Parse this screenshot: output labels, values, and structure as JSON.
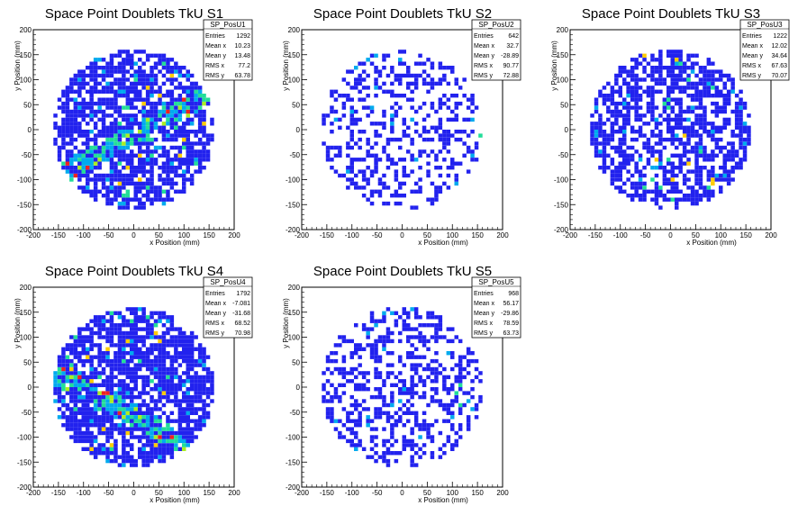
{
  "chart_data": [
    {
      "type": "heatmap",
      "title": "Space Point Doublets TkU S1",
      "xlabel": "x Position (mm)",
      "ylabel": "y Position (mm)",
      "xlim": [
        -200,
        200
      ],
      "ylim": [
        -200,
        200
      ],
      "xticks": [
        "-200",
        "-150",
        "-100",
        "-50",
        "0",
        "50",
        "100",
        "150",
        "200"
      ],
      "yticks": [
        "-200",
        "-150",
        "-100",
        "-50",
        "0",
        "50",
        "100",
        "150",
        "200"
      ],
      "stats": {
        "name": "SP_PosU1",
        "rows": [
          {
            "label": "Entries",
            "value": "1292"
          },
          {
            "label": "Mean x",
            "value": "10.23"
          },
          {
            "label": "Mean y",
            "value": "13.48"
          },
          {
            "label": "RMS x",
            "value": "77.2"
          },
          {
            "label": "RMS y",
            "value": "63.78"
          }
        ]
      },
      "pattern": {
        "band_dir": 1,
        "band_offset": -10,
        "band_width": 22,
        "fill": 0.7,
        "band_fill": 0.95,
        "hot_x": [
          -40,
          150
        ],
        "seed": 11
      }
    },
    {
      "type": "heatmap",
      "title": "Space Point Doublets TkU S2",
      "xlabel": "x Position (mm)",
      "ylabel": "y Position (mm)",
      "xlim": [
        -200,
        200
      ],
      "ylim": [
        -200,
        200
      ],
      "xticks": [
        "-200",
        "-150",
        "-100",
        "-50",
        "0",
        "50",
        "100",
        "150",
        "200"
      ],
      "yticks": [
        "-200",
        "-150",
        "-100",
        "-50",
        "0",
        "50",
        "100",
        "150",
        "200"
      ],
      "stats": {
        "name": "SP_PosU2",
        "rows": [
          {
            "label": "Entries",
            "value": "642"
          },
          {
            "label": "Mean x",
            "value": "32.7"
          },
          {
            "label": "Mean y",
            "value": "-28.89"
          },
          {
            "label": "RMS x",
            "value": "90.77"
          },
          {
            "label": "RMS y",
            "value": "72.88"
          }
        ]
      },
      "pattern": {
        "band_dir": 0,
        "band_offset": 0,
        "band_width": 0,
        "fill": 0.33,
        "band_fill": 0.0,
        "hot_x": [
          130,
          160
        ],
        "seed": 23
      }
    },
    {
      "type": "heatmap",
      "title": "Space Point Doublets TkU S3",
      "xlabel": "x Position (mm)",
      "ylabel": "y Position (mm)",
      "xlim": [
        -200,
        200
      ],
      "ylim": [
        -200,
        200
      ],
      "xticks": [
        "-200",
        "-150",
        "-100",
        "-50",
        "0",
        "50",
        "100",
        "150",
        "200"
      ],
      "yticks": [
        "-200",
        "-150",
        "-100",
        "-50",
        "0",
        "50",
        "100",
        "150",
        "200"
      ],
      "stats": {
        "name": "SP_PosU3",
        "rows": [
          {
            "label": "Entries",
            "value": "1222"
          },
          {
            "label": "Mean x",
            "value": "12.02"
          },
          {
            "label": "Mean y",
            "value": "34.64"
          },
          {
            "label": "RMS x",
            "value": "67.63"
          },
          {
            "label": "RMS y",
            "value": "70.07"
          }
        ]
      },
      "pattern": {
        "band_dir": 0,
        "band_offset": 0,
        "band_width": 0,
        "fill": 0.62,
        "band_fill": 0.0,
        "hot_x": [
          -60,
          90
        ],
        "seed": 37
      }
    },
    {
      "type": "heatmap",
      "title": "Space Point Doublets TkU S4",
      "xlabel": "x Position (mm)",
      "ylabel": "y Position (mm)",
      "xlim": [
        -200,
        200
      ],
      "ylim": [
        -200,
        200
      ],
      "xticks": [
        "-200",
        "-150",
        "-100",
        "-50",
        "0",
        "50",
        "100",
        "150",
        "200"
      ],
      "yticks": [
        "-200",
        "-150",
        "-100",
        "-50",
        "0",
        "50",
        "100",
        "150",
        "200"
      ],
      "stats": {
        "name": "SP_PosU4",
        "rows": [
          {
            "label": "Entries",
            "value": "1792"
          },
          {
            "label": "Mean x",
            "value": "-7.081"
          },
          {
            "label": "Mean y",
            "value": "-31.68"
          },
          {
            "label": "RMS x",
            "value": "68.52"
          },
          {
            "label": "RMS y",
            "value": "70.98"
          }
        ]
      },
      "pattern": {
        "band_dir": -1,
        "band_offset": -60,
        "band_width": 22,
        "fill": 0.78,
        "band_fill": 0.95,
        "hot_x": [
          -140,
          80
        ],
        "seed": 41
      }
    },
    {
      "type": "heatmap",
      "title": "Space Point Doublets TkU S5",
      "xlabel": "x Position (mm)",
      "ylabel": "y Position (mm)",
      "xlim": [
        -200,
        200
      ],
      "ylim": [
        -200,
        200
      ],
      "xticks": [
        "-200",
        "-150",
        "-100",
        "-50",
        "0",
        "50",
        "100",
        "150",
        "200"
      ],
      "yticks": [
        "-200",
        "-150",
        "-100",
        "-50",
        "0",
        "50",
        "100",
        "150",
        "200"
      ],
      "stats": {
        "name": "SP_PosU5",
        "rows": [
          {
            "label": "Entries",
            "value": "968"
          },
          {
            "label": "Mean x",
            "value": "56.17"
          },
          {
            "label": "Mean y",
            "value": "-29.86"
          },
          {
            "label": "RMS x",
            "value": "78.59"
          },
          {
            "label": "RMS y",
            "value": "63.73"
          }
        ]
      },
      "pattern": {
        "band_dir": 0,
        "band_offset": 0,
        "band_width": 0,
        "fill": 0.4,
        "band_fill": 0.0,
        "hot_x": [
          100,
          160
        ],
        "seed": 53
      }
    }
  ],
  "palette": {
    "low": "#2222ee",
    "mid_low": "#00aaee",
    "mid": "#22dd99",
    "mid_high": "#aaee22",
    "high": "#ffcc00",
    "max": "#ee2222",
    "frame": "#000000",
    "stats_bg": "#ffffff"
  }
}
